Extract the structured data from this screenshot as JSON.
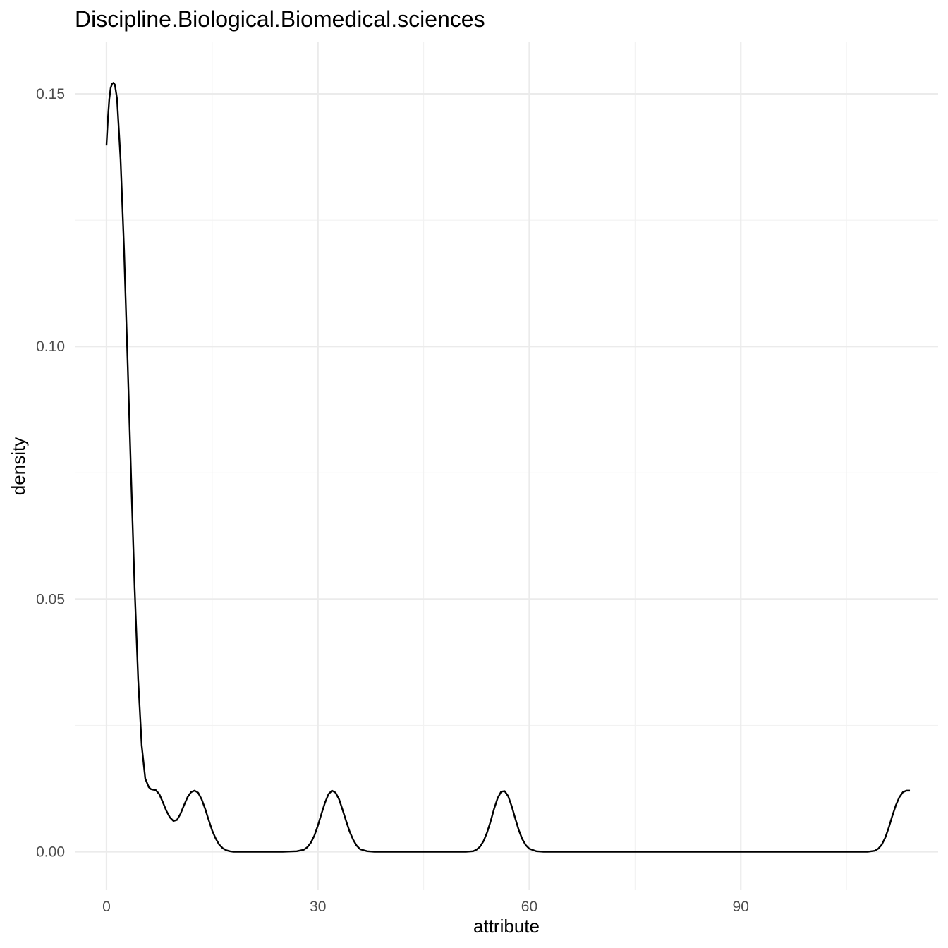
{
  "chart_data": {
    "type": "line",
    "title": "Discipline.Biological.Biomedical.sciences",
    "xlabel": "attribute",
    "ylabel": "density",
    "xlim": [
      -4.5,
      118
    ],
    "ylim": [
      -0.0076,
      0.1602
    ],
    "x_ticks": [
      0,
      30,
      60,
      90
    ],
    "x_tick_labels": [
      "0",
      "30",
      "60",
      "90"
    ],
    "x_minor_ticks": [
      15,
      45,
      75,
      105
    ],
    "y_ticks": [
      0.0,
      0.05,
      0.1,
      0.15
    ],
    "y_tick_labels": [
      "0.00",
      "0.05",
      "0.10",
      "0.15"
    ],
    "y_minor_ticks": [
      0.025,
      0.075,
      0.125
    ],
    "grid": true,
    "legend": "none",
    "series": [
      {
        "color": "#000000",
        "x": [
          0,
          0.2,
          0.4,
          0.6,
          0.8,
          1.0,
          1.2,
          1.5,
          2.0,
          2.5,
          3.0,
          3.5,
          4.0,
          4.5,
          5.0,
          5.5,
          6.0,
          6.3,
          6.6,
          7.0,
          7.5,
          8.0,
          8.5,
          9.0,
          9.5,
          10.0,
          10.5,
          11.0,
          11.5,
          12.0,
          12.5,
          13.0,
          13.5,
          14.0,
          14.5,
          15.0,
          15.5,
          16.0,
          16.5,
          17.0,
          17.5,
          18.0,
          20.0,
          25.0,
          27.0,
          28.0,
          28.5,
          29.0,
          29.5,
          30.0,
          30.5,
          31.0,
          31.5,
          32.0,
          32.5,
          33.0,
          33.5,
          34.0,
          34.5,
          35.0,
          35.5,
          36.0,
          37.0,
          38.0,
          45.0,
          51.0,
          52.0,
          52.5,
          53.0,
          53.5,
          54.0,
          54.5,
          55.0,
          55.5,
          56.0,
          56.5,
          57.0,
          57.5,
          58.0,
          58.5,
          59.0,
          59.5,
          60.0,
          61.0,
          62.0,
          80.0,
          100.0,
          108.0,
          109.0,
          109.5,
          110.0,
          110.5,
          111.0,
          111.5,
          112.0,
          112.5,
          113.0,
          113.5,
          114.0
        ],
        "y": [
          0.1398,
          0.145,
          0.149,
          0.1512,
          0.152,
          0.1522,
          0.1518,
          0.149,
          0.137,
          0.119,
          0.097,
          0.074,
          0.052,
          0.034,
          0.021,
          0.0145,
          0.0128,
          0.0124,
          0.0123,
          0.0122,
          0.0114,
          0.0098,
          0.0081,
          0.0068,
          0.0061,
          0.0063,
          0.0075,
          0.0092,
          0.0108,
          0.0118,
          0.0121,
          0.0117,
          0.0104,
          0.0085,
          0.0063,
          0.0042,
          0.0026,
          0.0014,
          0.0007,
          0.0003,
          0.0001,
          0.0,
          0.0,
          0.0,
          0.0001,
          0.0004,
          0.0009,
          0.0018,
          0.0032,
          0.0052,
          0.0075,
          0.0097,
          0.0114,
          0.0121,
          0.0117,
          0.0104,
          0.0083,
          0.0061,
          0.004,
          0.0024,
          0.0012,
          0.0005,
          0.0001,
          0.0,
          0.0,
          0.0,
          0.0001,
          0.0004,
          0.001,
          0.0021,
          0.0038,
          0.006,
          0.0085,
          0.0106,
          0.0119,
          0.012,
          0.011,
          0.009,
          0.0066,
          0.0043,
          0.0025,
          0.0013,
          0.0006,
          0.0001,
          0.0,
          0.0,
          0.0,
          0.0,
          0.0002,
          0.0006,
          0.0014,
          0.0028,
          0.0048,
          0.0071,
          0.0092,
          0.0108,
          0.0118,
          0.0121,
          0.0121
        ]
      }
    ]
  }
}
